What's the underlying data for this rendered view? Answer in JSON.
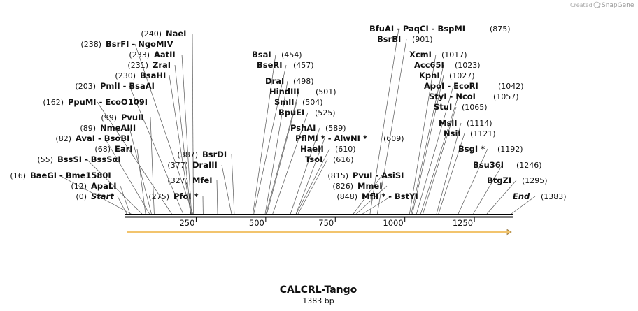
{
  "credit": {
    "created_by": "Created by",
    "brand": "SnapGene"
  },
  "sequence": {
    "name": "CALCRL-Tango",
    "length_label": "1383 bp",
    "length": 1383
  },
  "colors": {
    "feature_fill": "#f2c46d",
    "feature_stroke": "#8a6a2f",
    "backbone": "#000000"
  },
  "chart_data": {
    "type": "restriction-map",
    "axis": {
      "range": [
        0,
        1383
      ],
      "ticks": [
        250,
        500,
        750,
        1000,
        1250
      ]
    },
    "feature": {
      "start": 1,
      "end": 1383,
      "direction": "forward"
    },
    "sites": [
      {
        "pos": 240,
        "cut": 240,
        "label": "NaeI"
      },
      {
        "pos": 238,
        "cut": 238,
        "label": "BsrFI  - NgoMIV"
      },
      {
        "pos": 233,
        "cut": 233,
        "label": "AatII"
      },
      {
        "pos": 231,
        "cut": 231,
        "label": "ZraI"
      },
      {
        "pos": 230,
        "cut": 230,
        "label": "BsaHI"
      },
      {
        "pos": 203,
        "cut": 203,
        "label": "PmlI  - BsaAI"
      },
      {
        "pos": 162,
        "cut": 162,
        "label": "PpuMI  - EcoO109I"
      },
      {
        "pos": 99,
        "cut": 99,
        "label": "PvuII"
      },
      {
        "pos": 89,
        "cut": 89,
        "label": "NmeAIII"
      },
      {
        "pos": 82,
        "cut": 82,
        "label": "AvaI  - BsoBI"
      },
      {
        "pos": 68,
        "cut": 68,
        "label": "EarI"
      },
      {
        "pos": 55,
        "cut": 55,
        "label": "BssSI  - BssSαI"
      },
      {
        "pos": 16,
        "cut": 16,
        "label": "BaeGI  - Bme1580I"
      },
      {
        "pos": 12,
        "cut": 12,
        "label": "ApaLI"
      },
      {
        "pos": 0,
        "cut": 0,
        "label": "Start"
      },
      {
        "pos": 387,
        "cut": 387,
        "label": "BsrDI"
      },
      {
        "pos": 377,
        "cut": 377,
        "label": "DraIII"
      },
      {
        "pos": 327,
        "cut": 327,
        "label": "MfeI"
      },
      {
        "pos": 275,
        "cut": 275,
        "label": "PfoI *"
      },
      {
        "pos": 454,
        "cut": 454,
        "label": "BsaI"
      },
      {
        "pos": 457,
        "cut": 457,
        "label": "BseRI"
      },
      {
        "pos": 498,
        "cut": 498,
        "label": "DraI"
      },
      {
        "pos": 501,
        "cut": 501,
        "label": "HindIII"
      },
      {
        "pos": 504,
        "cut": 504,
        "label": "SmlI"
      },
      {
        "pos": 525,
        "cut": 525,
        "label": "BpuEI"
      },
      {
        "pos": 589,
        "cut": 589,
        "label": "PshAI"
      },
      {
        "pos": 609,
        "cut": 609,
        "label": "PflMI *  - AlwNI *"
      },
      {
        "pos": 610,
        "cut": 610,
        "label": "HaeII"
      },
      {
        "pos": 616,
        "cut": 616,
        "label": "TsoI"
      },
      {
        "pos": 875,
        "cut": 875,
        "label": "BfuAI  - PaqCI  - BspMI"
      },
      {
        "pos": 901,
        "cut": 901,
        "label": "BsrBI"
      },
      {
        "pos": 1017,
        "cut": 1017,
        "label": "XcmI"
      },
      {
        "pos": 1023,
        "cut": 1023,
        "label": "Acc65I"
      },
      {
        "pos": 1027,
        "cut": 1027,
        "label": "KpnI"
      },
      {
        "pos": 1042,
        "cut": 1042,
        "label": "ApoI  - EcoRI"
      },
      {
        "pos": 1057,
        "cut": 1057,
        "label": "StyI  - NcoI"
      },
      {
        "pos": 1065,
        "cut": 1065,
        "label": "StuI"
      },
      {
        "pos": 1114,
        "cut": 1114,
        "label": "MslI"
      },
      {
        "pos": 1121,
        "cut": 1121,
        "label": "NsiI"
      },
      {
        "pos": 1192,
        "cut": 1192,
        "label": "BsgI *"
      },
      {
        "pos": 1246,
        "cut": 1246,
        "label": "Bsu36I"
      },
      {
        "pos": 1295,
        "cut": 1295,
        "label": "BtgZI"
      },
      {
        "pos": 815,
        "cut": 815,
        "label": "PvuI  - AsiSI"
      },
      {
        "pos": 826,
        "cut": 826,
        "label": "MmeI"
      },
      {
        "pos": 848,
        "cut": 848,
        "label": "MflI *  - BstYI"
      },
      {
        "pos": 1383,
        "cut": 1383,
        "label": "End"
      }
    ]
  }
}
